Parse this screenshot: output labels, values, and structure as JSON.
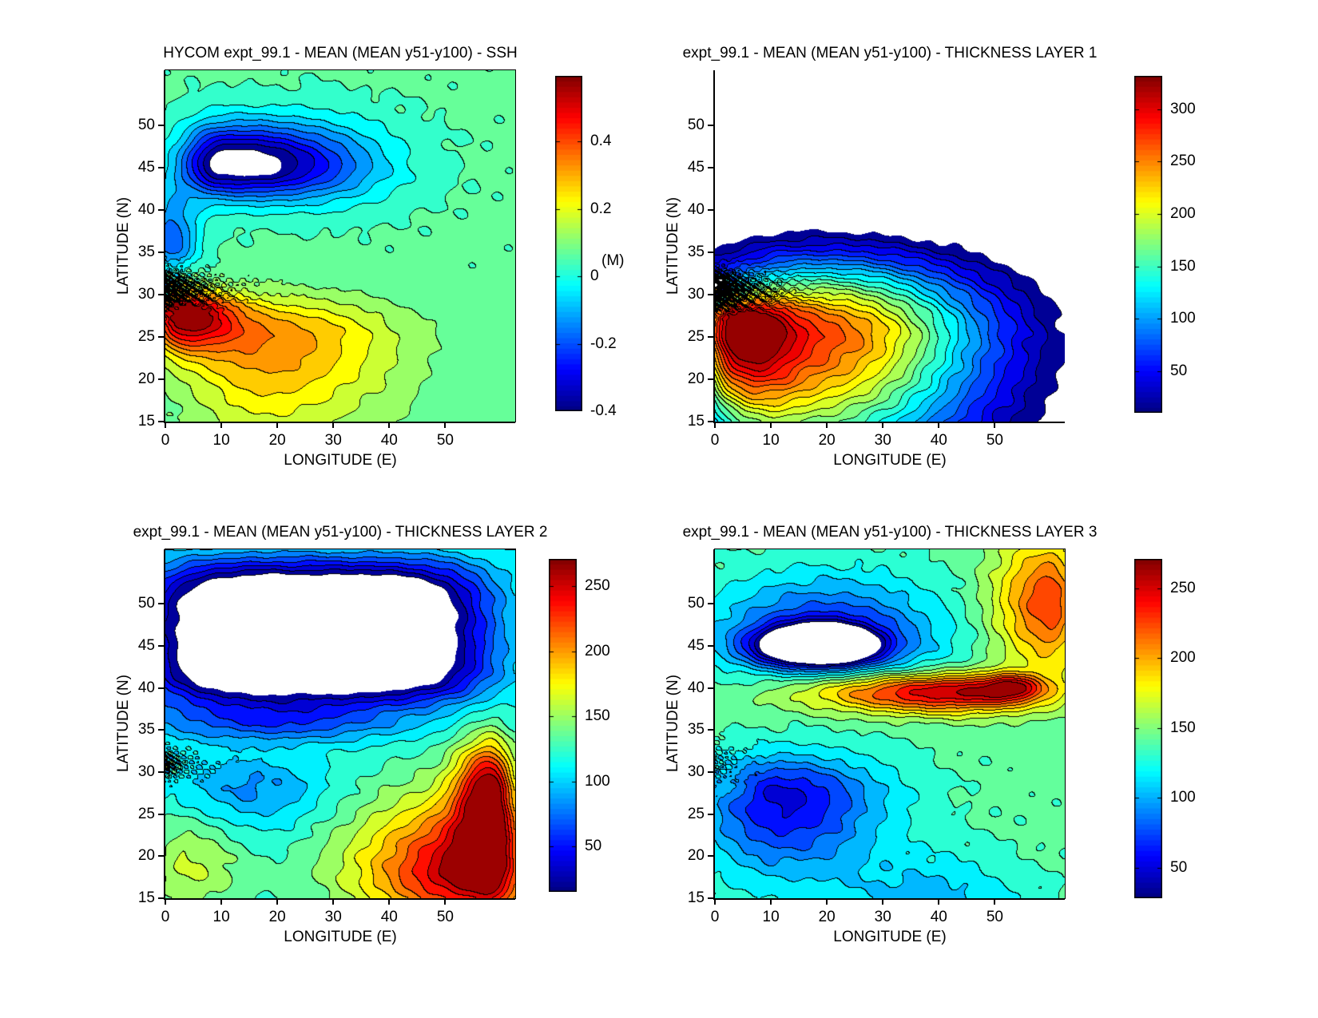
{
  "figure": {
    "background": "#ffffff",
    "colormap_name": "jet",
    "description": "Four-panel MATLAB-style filled contour figure of HYCOM experiment 99.1 mean fields (years 51-100): sea surface height and thicknesses of layers 1-3 over a rectangular basin, longitude 0-60E, latitude 15-55N."
  },
  "chart_data": [
    {
      "type": "filled-contour",
      "title": "HYCOM expt_99.1 - MEAN (MEAN y51-y100) - SSH",
      "xlabel": "LONGITUDE (E)",
      "ylabel": "LATITUDE (N)",
      "xlim": [
        0,
        62.5
      ],
      "ylim": [
        15,
        56.5
      ],
      "xticks": [
        0,
        10,
        20,
        30,
        40,
        50
      ],
      "yticks": [
        15,
        20,
        25,
        30,
        35,
        40,
        45,
        50
      ],
      "vmin": -0.4,
      "vmax": 0.595,
      "level_step": 0.05,
      "colorbar": {
        "label": "(M)",
        "ticks": [
          {
            "value": 0.4,
            "label": "0.4"
          },
          {
            "value": 0.2,
            "label": "0.2"
          },
          {
            "value": 0.0,
            "label": "0"
          },
          {
            "value": -0.2,
            "label": "-0.2"
          },
          {
            "value": -0.4,
            "label": "-0.4"
          }
        ]
      },
      "description": "Cyclonic (negative SSH, blue) subpolar gyre centered near 8E,46N reaching below -0.4 m (blank white core), anticyclonic (positive, red) subtropical gyre with maximum ~+0.55 m at the western boundary near 3E,28N, sharp crowded front along ~30-31N at the west, background ~+0.05 m cyan in the east.",
      "field_model": {
        "base": 0.06,
        "noise": 0.012,
        "wiggle": {
          "amp": 0.32,
          "lat": 30.5,
          "lats": 2.2,
          "decay": 6
        },
        "blobs": [
          {
            "a": -0.42,
            "x": 10,
            "y": 45.5,
            "sxl": 7,
            "sxr": 17,
            "syd": 3.8,
            "syu": 4.5
          },
          {
            "a": -0.2,
            "x": 26,
            "y": 45,
            "sxl": 18,
            "sxr": 16,
            "syd": 4.5,
            "syu": 5.5
          },
          {
            "a": -0.25,
            "x": 1,
            "y": 36,
            "sxl": 3,
            "sxr": 5,
            "syd": 3,
            "syu": 6
          },
          {
            "a": 0.52,
            "x": 3,
            "y": 28,
            "sxl": 5,
            "sxr": 9,
            "syd": 4.5,
            "syu": 2.2
          },
          {
            "a": 0.28,
            "x": 18,
            "y": 25,
            "sxl": 14,
            "sxr": 22,
            "syd": 11,
            "syu": 4.5
          }
        ]
      }
    },
    {
      "type": "filled-contour",
      "title": "expt_99.1 - MEAN (MEAN y51-y100) - THICKNESS LAYER 1",
      "xlabel": "LONGITUDE (E)",
      "ylabel": "LATITUDE (N)",
      "xlim": [
        0,
        62.5
      ],
      "ylim": [
        15,
        56.5
      ],
      "xticks": [
        0,
        10,
        20,
        30,
        40,
        50
      ],
      "yticks": [
        15,
        20,
        25,
        30,
        35,
        40,
        45,
        50
      ],
      "vmin": 10,
      "vmax": 332,
      "level_step": 14,
      "colorbar": {
        "ticks": [
          {
            "value": 300,
            "label": "300"
          },
          {
            "value": 250,
            "label": "250"
          },
          {
            "value": 200,
            "label": "200"
          },
          {
            "value": 150,
            "label": "150"
          },
          {
            "value": 100,
            "label": "100"
          },
          {
            "value": 50,
            "label": "50"
          }
        ]
      },
      "description": "Layer-1 thickness exists only south of ~37N (white where the layer vanishes). Maximum ~330 near the western boundary at 3E,27N (dark red bowl), thinning eastward and toward all edges through orange, yellow, green, cyan to a blue fringe; chaotic crowded contours near 0-8E,30-31N.",
      "field_model": {
        "base": -30,
        "noise": 6,
        "wiggle": {
          "amp": 150,
          "lat": 30.5,
          "lats": 2.0,
          "decay": 5
        },
        "blobs": [
          {
            "a": 260,
            "x": 14,
            "y": 24.5,
            "sxl": 18,
            "sxr": 34,
            "syd": 17,
            "syu": 8.5
          },
          {
            "a": 170,
            "x": 3,
            "y": 27,
            "sxl": 6,
            "sxr": 9,
            "syd": 10,
            "syu": 2.8
          },
          {
            "a": 60,
            "x": 25,
            "y": 30,
            "sxl": 26,
            "sxr": 26,
            "syd": 12,
            "syu": 6.5
          }
        ]
      }
    },
    {
      "type": "filled-contour",
      "title": "expt_99.1 - MEAN (MEAN y51-y100) - THICKNESS LAYER 2",
      "xlabel": "LONGITUDE (E)",
      "ylabel": "LATITUDE (N)",
      "xlim": [
        0,
        62.5
      ],
      "ylim": [
        15,
        56.5
      ],
      "xticks": [
        0,
        10,
        20,
        30,
        40,
        50
      ],
      "yticks": [
        15,
        20,
        25,
        30,
        35,
        40,
        45,
        50
      ],
      "vmin": 15,
      "vmax": 271,
      "level_step": 14.2,
      "colorbar": {
        "ticks": [
          {
            "value": 250,
            "label": "250"
          },
          {
            "value": 200,
            "label": "200"
          },
          {
            "value": 150,
            "label": "150"
          },
          {
            "value": 100,
            "label": "100"
          },
          {
            "value": 50,
            "label": "50"
          }
        ]
      },
      "description": "Large blank (vanished-layer) plateau across the north (~2-56E, 39-52N) rimmed by blue bands, dark blue strip along the top edge, cyan pool in the west-center near 15E,28N, green-yellow in the southwest, and thick red/dark-red maxima ~265 in the southeast corner and along the eastern boundary near 58E,28N.",
      "field_model": {
        "base": 120,
        "noise": 5,
        "wiggle": {
          "amp": 55,
          "lat": 31,
          "lats": 1.8,
          "decay": 4
        },
        "blobs": [
          {
            "a": -170,
            "x": 27,
            "y": 46,
            "sxl": 30,
            "sxr": 30,
            "syd": 7.5,
            "syu": 9,
            "p": 4
          },
          {
            "a": 150,
            "x": 57,
            "y": 18,
            "sxl": 22,
            "sxr": 8,
            "syd": 6,
            "syu": 9
          },
          {
            "a": 120,
            "x": 58,
            "y": 28,
            "sxl": 6,
            "sxr": 4,
            "syd": 8,
            "syu": 6
          },
          {
            "a": -40,
            "x": 15,
            "y": 28,
            "sxl": 14,
            "sxr": 14,
            "syd": 5,
            "syu": 4
          },
          {
            "a": 40,
            "x": 4,
            "y": 19,
            "sxl": 6,
            "sxr": 10,
            "syd": 6,
            "syu": 7
          },
          {
            "a": -60,
            "x": 20,
            "y": 36,
            "sxl": 25,
            "sxr": 25,
            "syd": 2.5,
            "syu": 3
          }
        ]
      }
    },
    {
      "type": "filled-contour",
      "title": "expt_99.1 - MEAN (MEAN y51-y100) - THICKNESS LAYER 3",
      "xlabel": "LONGITUDE (E)",
      "ylabel": "LATITUDE (N)",
      "xlim": [
        0,
        62.5
      ],
      "ylim": [
        15,
        56.5
      ],
      "xticks": [
        0,
        10,
        20,
        30,
        40,
        50
      ],
      "yticks": [
        15,
        20,
        25,
        30,
        35,
        40,
        45,
        50
      ],
      "vmin": 28,
      "vmax": 271,
      "level_step": 13.5,
      "colorbar": {
        "ticks": [
          {
            "value": 250,
            "label": "250"
          },
          {
            "value": 200,
            "label": "200"
          },
          {
            "value": 150,
            "label": "150"
          },
          {
            "value": 100,
            "label": "100"
          },
          {
            "value": 50,
            "label": "50"
          }
        ]
      },
      "description": "Elongated blank-core (vanished-layer) lens near 12-28E,44-46N wrapped in tight dark-blue contours, a red/dark-red thick band (~270 max) along 38-41N intensifying toward 50-57E, warm orange northeast corner, broad blue thin pool over the southwest (5-30E, 20-32N) with a small inner patch near 4E,28N, and cyan across the southern edge.",
      "field_model": {
        "base": 140,
        "noise": 5,
        "wiggle": {
          "amp": 25,
          "lat": 31,
          "lats": 2.5,
          "decay": 4
        },
        "blobs": [
          {
            "a": -200,
            "x": 19,
            "y": 45,
            "sxl": 10,
            "sxr": 9,
            "syd": 2.0,
            "syu": 2.2
          },
          {
            "a": -80,
            "x": 20,
            "y": 46,
            "sxl": 20,
            "sxr": 20,
            "syd": 5,
            "syu": 7
          },
          {
            "a": 120,
            "x": 42,
            "y": 39.5,
            "sxl": 25,
            "sxr": 16,
            "syd": 2.5,
            "syu": 2.2
          },
          {
            "a": 60,
            "x": 53,
            "y": 40,
            "sxl": 5,
            "sxr": 5,
            "syd": 1.5,
            "syu": 1.5
          },
          {
            "a": 90,
            "x": 60,
            "y": 50,
            "sxl": 10,
            "sxr": 5,
            "syd": 8,
            "syu": 8
          },
          {
            "a": -90,
            "x": 12,
            "y": 27,
            "sxl": 14,
            "sxr": 18,
            "syd": 9,
            "syu": 5
          },
          {
            "a": 15,
            "x": 4,
            "y": 28,
            "sxl": 3,
            "sxr": 3,
            "syd": 1.5,
            "syu": 1.5
          },
          {
            "a": -35,
            "x": 40,
            "y": 15,
            "sxl": 18,
            "sxr": 15,
            "syd": 4,
            "syu": 5
          }
        ]
      }
    }
  ]
}
